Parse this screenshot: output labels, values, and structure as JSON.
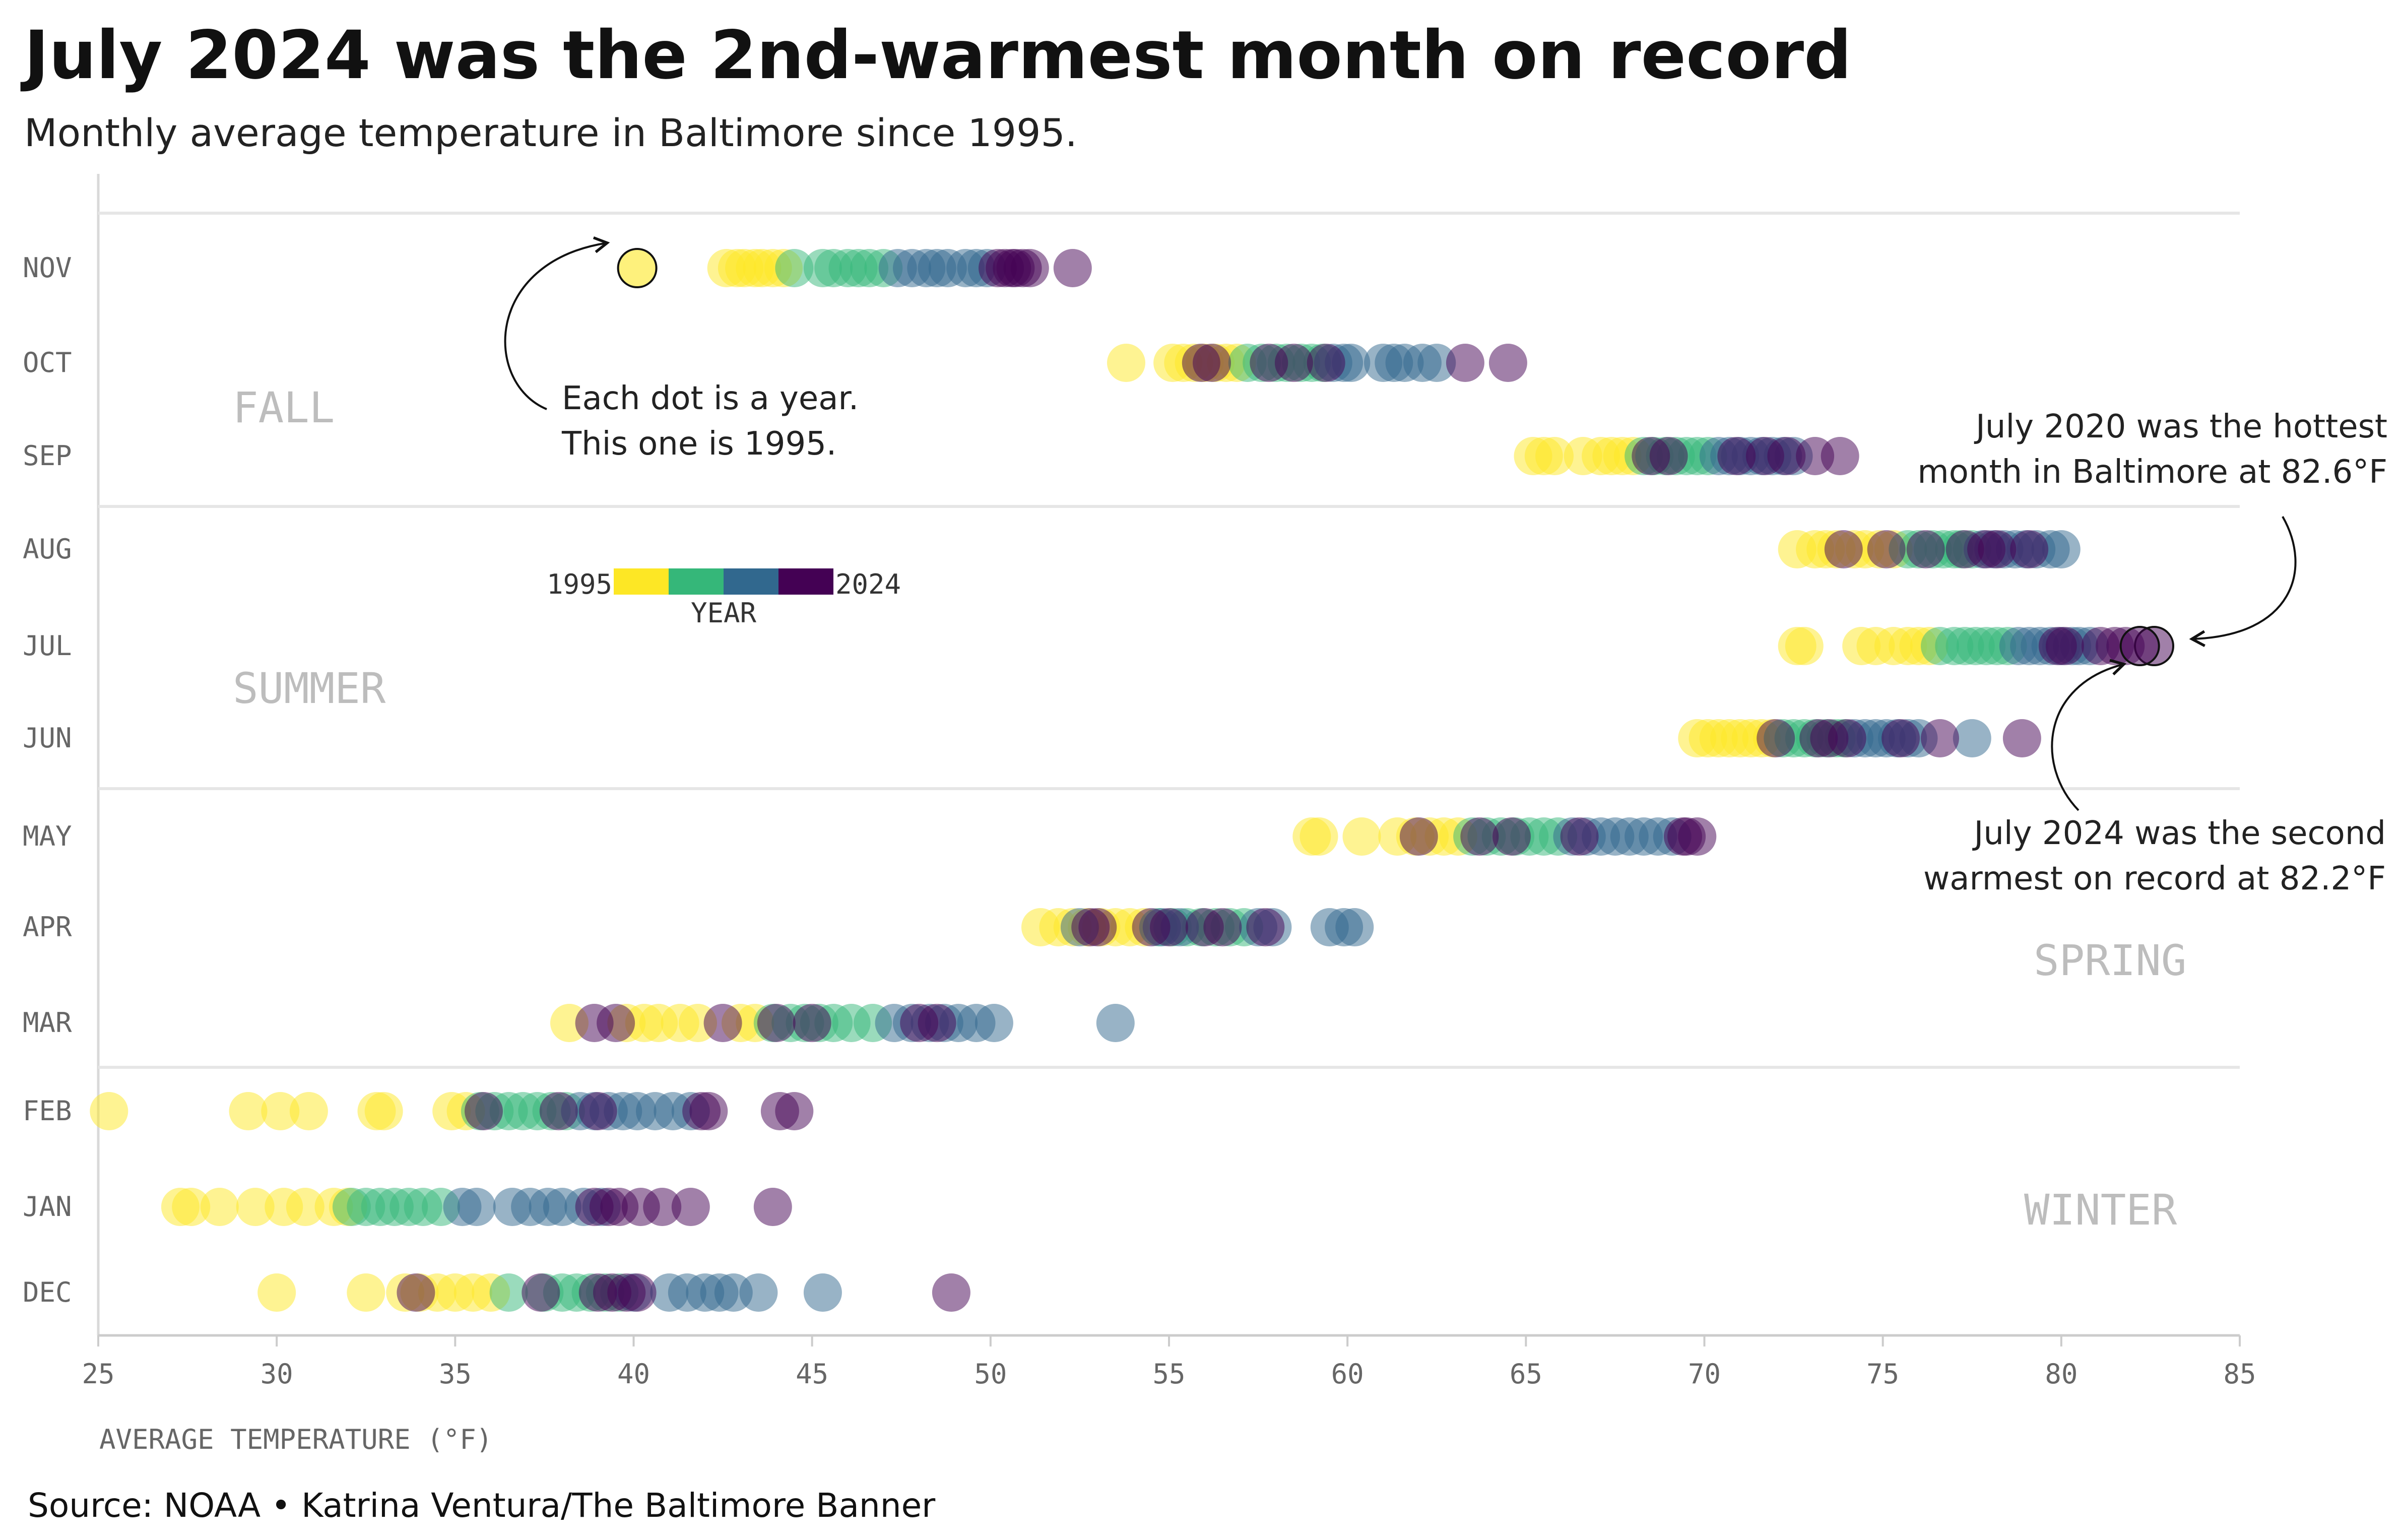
{
  "title": "July 2024 was the 2nd-warmest month on record",
  "subtitle": "Monthly average temperature in Baltimore since 1995.",
  "source": "Source: NOAA • Katrina Ventura/The Baltimore Banner",
  "colors": {
    "palette": [
      "#fde725",
      "#35b779",
      "#31688e",
      "#440154"
    ],
    "grid": "#e6e6e6",
    "axis": "#cccccc",
    "season": "#bdbdbd"
  },
  "legend": {
    "start": "1995",
    "end": "2024",
    "label": "YEAR"
  },
  "seasons": [
    {
      "name": "FALL"
    },
    {
      "name": "SUMMER"
    },
    {
      "name": "SPRING"
    },
    {
      "name": "WINTER"
    }
  ],
  "annotations": {
    "dot": [
      "Each dot is a year.",
      "This one is 1995."
    ],
    "hottest": [
      "July 2020 was the hottest",
      "month in Baltimore at 82.6°F"
    ],
    "second": [
      "July 2024 was the second",
      "warmest on record at 82.2°F"
    ]
  },
  "chart_data": {
    "type": "scatter",
    "title": "July 2024 was the 2nd-warmest month on record",
    "xlabel": "AVERAGE TEMPERATURE (°F)",
    "ylabel": "",
    "xlim": [
      25,
      85
    ],
    "xticks": [
      "25",
      "30",
      "35",
      "40",
      "45",
      "50",
      "55",
      "60",
      "65",
      "70",
      "75",
      "80",
      "85"
    ],
    "years": [
      1995,
      1996,
      1997,
      1998,
      1999,
      2000,
      2001,
      2002,
      2003,
      2004,
      2005,
      2006,
      2007,
      2008,
      2009,
      2010,
      2011,
      2012,
      2013,
      2014,
      2015,
      2016,
      2017,
      2018,
      2019,
      2020,
      2021,
      2022,
      2023,
      2024
    ],
    "months": [
      "NOV",
      "OCT",
      "SEP",
      "AUG",
      "JUL",
      "JUN",
      "MAY",
      "APR",
      "MAR",
      "FEB",
      "JAN",
      "DEC"
    ],
    "series": [
      {
        "month": "NOV",
        "values": [
          40.1,
          42.6,
          42.9,
          43.1,
          43.4,
          43.6,
          43.9,
          44.2,
          44.5,
          45.3,
          45.6,
          46.0,
          46.3,
          46.6,
          47.0,
          47.4,
          47.8,
          48.2,
          48.5,
          48.8,
          49.3,
          49.6,
          49.9,
          50.2,
          50.4,
          50.7,
          50.9,
          51.1,
          50.6,
          52.3
        ]
      },
      {
        "month": "OCT",
        "values": [
          53.8,
          55.1,
          55.4,
          55.7,
          56.0,
          56.3,
          56.6,
          56.9,
          57.2,
          57.6,
          58.0,
          58.3,
          58.7,
          59.0,
          59.3,
          59.6,
          59.9,
          60.1,
          61.0,
          61.3,
          61.6,
          62.1,
          62.5,
          63.3,
          64.5,
          55.9,
          57.8,
          56.2,
          58.5,
          59.4
        ]
      },
      {
        "month": "SEP",
        "values": [
          65.2,
          65.5,
          65.8,
          66.6,
          67.1,
          67.4,
          67.7,
          68.0,
          68.3,
          68.6,
          68.9,
          69.2,
          69.5,
          69.8,
          70.1,
          70.4,
          70.7,
          71.0,
          71.3,
          71.6,
          71.9,
          72.2,
          72.5,
          73.1,
          73.8,
          69.0,
          70.9,
          71.7,
          72.3,
          68.5
        ]
      },
      {
        "month": "AUG",
        "values": [
          72.6,
          73.1,
          73.4,
          73.7,
          74.2,
          74.5,
          74.9,
          75.3,
          75.7,
          76.0,
          76.4,
          76.7,
          77.0,
          77.2,
          77.5,
          77.8,
          78.1,
          78.4,
          78.7,
          79.0,
          79.3,
          79.7,
          80.0,
          73.9,
          75.1,
          77.3,
          78.2,
          79.1,
          76.2,
          77.9
        ]
      },
      {
        "month": "JUL",
        "values": [
          72.8,
          72.6,
          74.4,
          74.8,
          75.3,
          75.7,
          76.0,
          76.3,
          76.6,
          77.0,
          77.3,
          77.6,
          77.9,
          78.2,
          78.5,
          78.8,
          79.1,
          79.4,
          79.7,
          80.0,
          80.3,
          80.5,
          80.8,
          81.1,
          81.5,
          82.6,
          81.8,
          80.1,
          79.9,
          82.2
        ]
      },
      {
        "month": "JUN",
        "values": [
          69.8,
          70.1,
          70.4,
          70.7,
          71.0,
          71.3,
          71.6,
          71.9,
          72.2,
          72.5,
          72.8,
          73.1,
          73.4,
          73.7,
          73.9,
          74.2,
          74.5,
          74.8,
          75.1,
          75.4,
          75.7,
          76.0,
          77.5,
          78.9,
          72.0,
          73.5,
          74.0,
          75.5,
          73.2,
          76.6
        ]
      },
      {
        "month": "MAY",
        "values": [
          59.2,
          60.4,
          59.0,
          61.4,
          61.9,
          62.3,
          62.7,
          63.1,
          63.5,
          63.9,
          64.3,
          64.7,
          65.1,
          65.5,
          65.9,
          66.3,
          66.7,
          67.1,
          67.5,
          67.9,
          68.3,
          68.7,
          69.1,
          69.5,
          69.8,
          62.0,
          63.7,
          64.6,
          66.5,
          69.4
        ]
      },
      {
        "month": "APR",
        "values": [
          51.4,
          51.9,
          52.3,
          52.7,
          53.1,
          53.5,
          53.9,
          54.3,
          54.7,
          55.1,
          55.5,
          55.9,
          56.3,
          56.7,
          57.1,
          57.5,
          57.9,
          59.5,
          59.9,
          60.2,
          52.5,
          54.8,
          55.3,
          56.0,
          53.0,
          57.7,
          54.5,
          56.5,
          52.8,
          55.0
        ]
      },
      {
        "month": "MAR",
        "values": [
          41.8,
          38.2,
          39.8,
          40.3,
          40.7,
          41.3,
          43.0,
          43.4,
          43.9,
          44.4,
          44.8,
          45.2,
          45.6,
          46.1,
          46.7,
          47.3,
          47.8,
          48.3,
          48.7,
          49.1,
          49.6,
          50.1,
          53.5,
          38.9,
          42.5,
          48.0,
          44.0,
          45.0,
          39.5,
          48.5
        ]
      },
      {
        "month": "FEB",
        "values": [
          33.0,
          25.3,
          29.2,
          30.1,
          30.9,
          32.8,
          34.9,
          35.3,
          35.7,
          36.1,
          36.5,
          36.9,
          37.3,
          37.7,
          38.1,
          38.5,
          38.9,
          39.3,
          39.7,
          40.1,
          40.6,
          41.1,
          41.6,
          42.1,
          44.1,
          44.5,
          35.8,
          37.9,
          39.0,
          41.9
        ]
      },
      {
        "month": "JAN",
        "values": [
          32.0,
          27.3,
          27.6,
          28.4,
          29.4,
          30.2,
          30.8,
          31.6,
          32.1,
          32.5,
          32.9,
          33.3,
          33.7,
          34.1,
          34.6,
          35.2,
          35.6,
          36.6,
          37.1,
          37.6,
          38.0,
          38.6,
          39.1,
          39.6,
          40.2,
          40.8,
          41.6,
          43.9,
          38.9,
          39.3
        ]
      },
      {
        "month": "DEC",
        "values": [
          30.0,
          32.5,
          33.6,
          34.0,
          34.5,
          35.0,
          35.5,
          36.0,
          36.5,
          37.5,
          38.0,
          38.4,
          38.8,
          39.2,
          39.6,
          40.0,
          41.0,
          41.5,
          42.0,
          42.4,
          42.8,
          43.5,
          45.3,
          48.9,
          33.9,
          37.4,
          39.0,
          39.8,
          40.1,
          39.4
        ]
      }
    ]
  }
}
